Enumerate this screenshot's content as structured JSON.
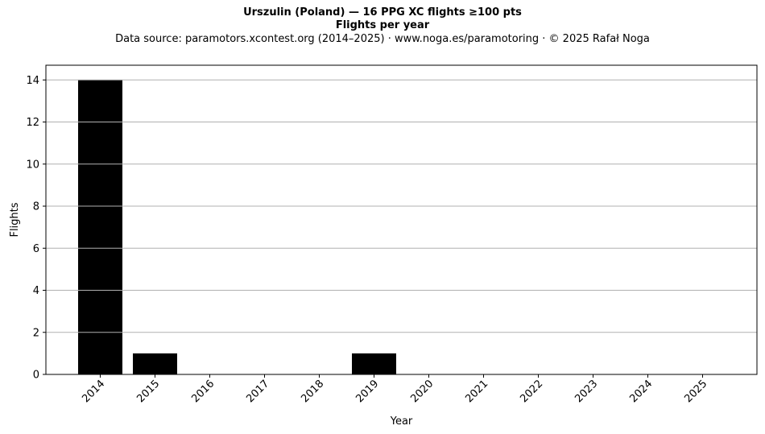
{
  "header": {
    "title": "Urszulin (Poland)  —  16 PPG XC flights ≥100 pts",
    "subtitle": "Flights per year",
    "source": "Data source: paramotors.xcontest.org (2014–2025)  ·  www.noga.es/paramotoring  ·  © 2025 Rafał Noga"
  },
  "chart_data": {
    "type": "bar",
    "categories": [
      "2014",
      "2015",
      "2016",
      "2017",
      "2018",
      "2019",
      "2020",
      "2021",
      "2022",
      "2023",
      "2024",
      "2025"
    ],
    "values": [
      14,
      1,
      0,
      0,
      0,
      1,
      0,
      0,
      0,
      0,
      0,
      0
    ],
    "xlabel": "Year",
    "ylabel": "Flights",
    "ylim": [
      0,
      14.7
    ],
    "yticks": [
      0,
      2,
      4,
      6,
      8,
      10,
      12,
      14
    ],
    "grid": "horizontal",
    "bar_color": "#000000",
    "grid_color": "#b0b0b0"
  }
}
